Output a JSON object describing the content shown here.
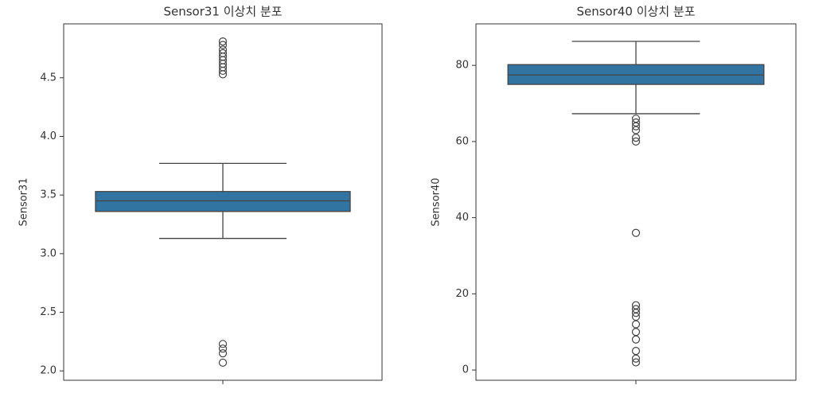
{
  "chart_data": [
    {
      "type": "box",
      "title": "Sensor31 이상치 분포",
      "y_label": "Sensor31",
      "color": "#3274a1",
      "ylim": [
        1.92,
        4.96
      ],
      "yticks": [
        {
          "value": 2,
          "label": "2.0"
        },
        2.5,
        {
          "value": 3,
          "label": "3.0"
        },
        3.5,
        {
          "value": 4,
          "label": "4.0"
        },
        4.5
      ],
      "whisker_low": 3.13,
      "q1": 3.36,
      "median": 3.45,
      "q3": 3.53,
      "whisker_high": 3.77,
      "outliers": [
        4.53,
        4.56,
        4.59,
        4.62,
        4.65,
        4.68,
        4.71,
        4.74,
        4.78,
        4.81,
        2.07,
        2.15,
        2.19,
        2.23
      ]
    },
    {
      "type": "box",
      "title": "Sensor40 이상치 분포",
      "y_label": "Sensor40",
      "color": "#3274a1",
      "ylim": [
        -2.7,
        90.9
      ],
      "yticks": [
        0,
        20,
        40,
        60,
        80
      ],
      "whisker_low": 67.3,
      "q1": 75.0,
      "median": 77.5,
      "q3": 80.2,
      "whisker_high": 86.3,
      "outliers": [
        66,
        65,
        64,
        63,
        61,
        60,
        36,
        17,
        16,
        15,
        14,
        12,
        10,
        8,
        5,
        3,
        2
      ]
    }
  ]
}
